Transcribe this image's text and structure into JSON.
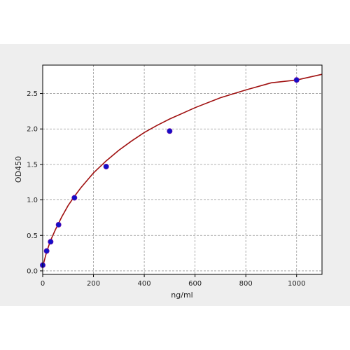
{
  "chart_data": {
    "type": "scatter",
    "title": "",
    "xlabel": "ng/ml",
    "ylabel": "OD450",
    "xlim": [
      0,
      1100
    ],
    "ylim": [
      -0.05,
      2.9
    ],
    "grid": true,
    "x_ticks": [
      0,
      200,
      400,
      600,
      800,
      1000
    ],
    "x_tick_labels": [
      "0",
      "200",
      "400",
      "600",
      "800",
      "1000"
    ],
    "y_ticks": [
      0.0,
      0.5,
      1.0,
      1.5,
      2.0,
      2.5
    ],
    "y_tick_labels": [
      "0.0",
      "0.5",
      "1.0",
      "1.5",
      "2.0",
      "2.5"
    ],
    "series": [
      {
        "kind": "points",
        "x": [
          0,
          15.6,
          31.25,
          62.5,
          125,
          250,
          500,
          1000
        ],
        "y": [
          0.08,
          0.28,
          0.41,
          0.65,
          1.03,
          1.47,
          1.97,
          2.69
        ],
        "color": "#1010c8",
        "edge_color": "#6a0dad"
      },
      {
        "kind": "fit-curve",
        "color": "#a01010",
        "x": [
          0,
          15,
          30,
          50,
          75,
          100,
          125,
          150,
          200,
          250,
          300,
          350,
          400,
          450,
          500,
          600,
          700,
          800,
          900,
          1000,
          1100
        ],
        "y": [
          0.06,
          0.26,
          0.42,
          0.58,
          0.76,
          0.92,
          1.05,
          1.17,
          1.38,
          1.55,
          1.7,
          1.83,
          1.95,
          2.05,
          2.14,
          2.3,
          2.44,
          2.55,
          2.65,
          2.69,
          2.77
        ]
      }
    ]
  }
}
